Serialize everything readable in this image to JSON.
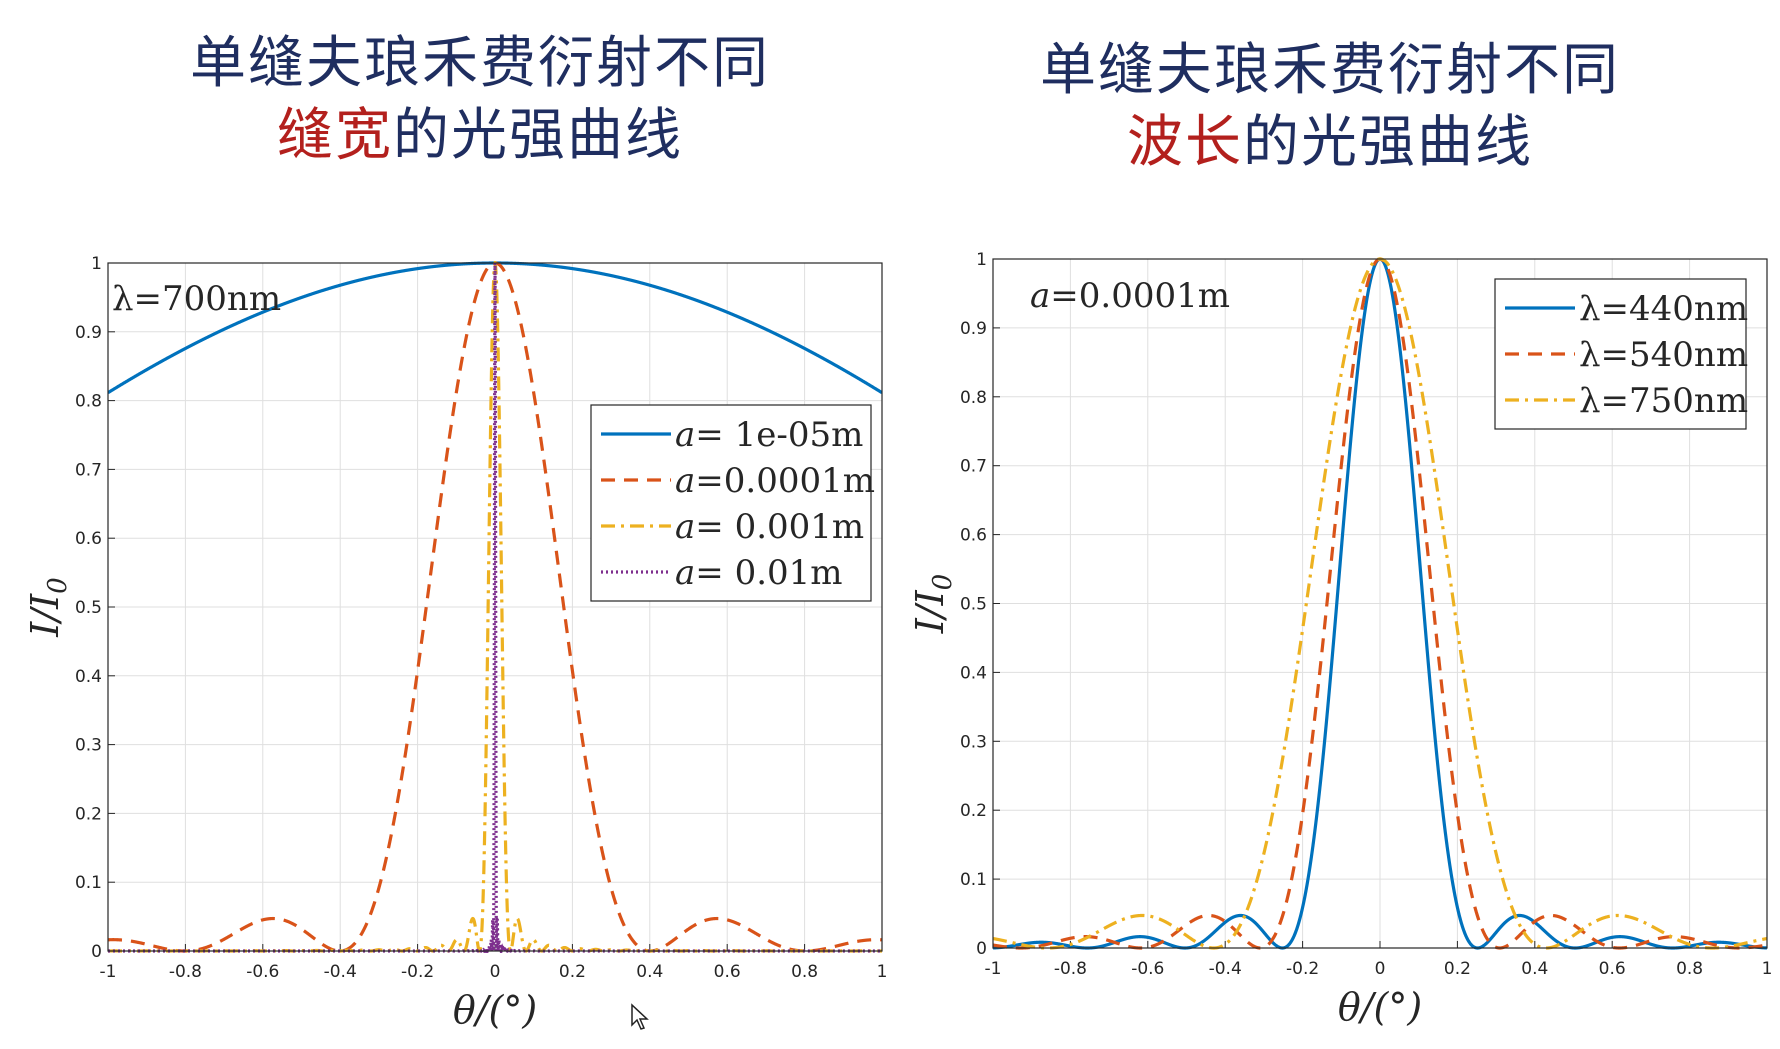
{
  "titles": {
    "left": {
      "line1": "单缝夫琅禾费衍射不同",
      "line2_highlight": "缝宽",
      "line2_rest": "的光强曲线"
    },
    "right": {
      "line1": "单缝夫琅禾费衍射不同",
      "line2_highlight": "波长",
      "line2_rest": "的光强曲线"
    }
  },
  "colors": {
    "title": "#1f2e60",
    "highlight": "#b3201d",
    "blue": "#0072bd",
    "orange": "#d95319",
    "yellow": "#edb120",
    "purple": "#7e2f8e"
  },
  "chart_data": [
    {
      "type": "line",
      "xlabel": "θ/(°)",
      "ylabel": "I/I0",
      "xlim": [
        -1,
        1
      ],
      "ylim": [
        0,
        1
      ],
      "xticks": [
        "-1",
        "-0.8",
        "-0.6",
        "-0.4",
        "-0.2",
        "0",
        "0.2",
        "0.4",
        "0.6",
        "0.8",
        "1"
      ],
      "yticks": [
        "0",
        "0.1",
        "0.2",
        "0.3",
        "0.4",
        "0.5",
        "0.6",
        "0.7",
        "0.8",
        "0.9",
        "1"
      ],
      "annotation": "λ=700nm",
      "wavelength_m": 7e-07,
      "legend_position": "center-right",
      "series": [
        {
          "name": "a= 1e-05m",
          "label_var": "a",
          "label_val": "= 1e-05m",
          "slit_width_m": 1e-05,
          "style": "solid",
          "color": "#0072bd"
        },
        {
          "name": "a=0.0001m",
          "label_var": "a",
          "label_val": "=0.0001m",
          "slit_width_m": 0.0001,
          "style": "dashed",
          "color": "#d95319"
        },
        {
          "name": "a= 0.001m",
          "label_var": "a",
          "label_val": "= 0.001m",
          "slit_width_m": 0.001,
          "style": "dashdot",
          "color": "#edb120"
        },
        {
          "name": "a= 0.01m",
          "label_var": "a",
          "label_val": "=  0.01m",
          "slit_width_m": 0.01,
          "style": "dotted",
          "color": "#7e2f8e"
        }
      ]
    },
    {
      "type": "line",
      "xlabel": "θ/(°)",
      "ylabel": "I/I0",
      "xlim": [
        -1,
        1
      ],
      "ylim": [
        0,
        1
      ],
      "xticks": [
        "-1",
        "-0.8",
        "-0.6",
        "-0.4",
        "-0.2",
        "0",
        "0.2",
        "0.4",
        "0.6",
        "0.8",
        "1"
      ],
      "yticks": [
        "0",
        "0.1",
        "0.2",
        "0.3",
        "0.4",
        "0.5",
        "0.6",
        "0.7",
        "0.8",
        "0.9",
        "1"
      ],
      "annotation": "a=0.0001m",
      "slit_width_m": 0.0001,
      "legend_position": "top-right",
      "series": [
        {
          "name": "λ=440nm",
          "label_val": "λ=440nm",
          "wavelength_m": 4.4e-07,
          "style": "solid",
          "color": "#0072bd"
        },
        {
          "name": "λ=540nm",
          "label_val": "λ=540nm",
          "wavelength_m": 5.4e-07,
          "style": "dashed",
          "color": "#d95319"
        },
        {
          "name": "λ=750nm",
          "label_val": "λ=750nm",
          "wavelength_m": 7.5e-07,
          "style": "dashdot",
          "color": "#edb120"
        }
      ]
    }
  ]
}
